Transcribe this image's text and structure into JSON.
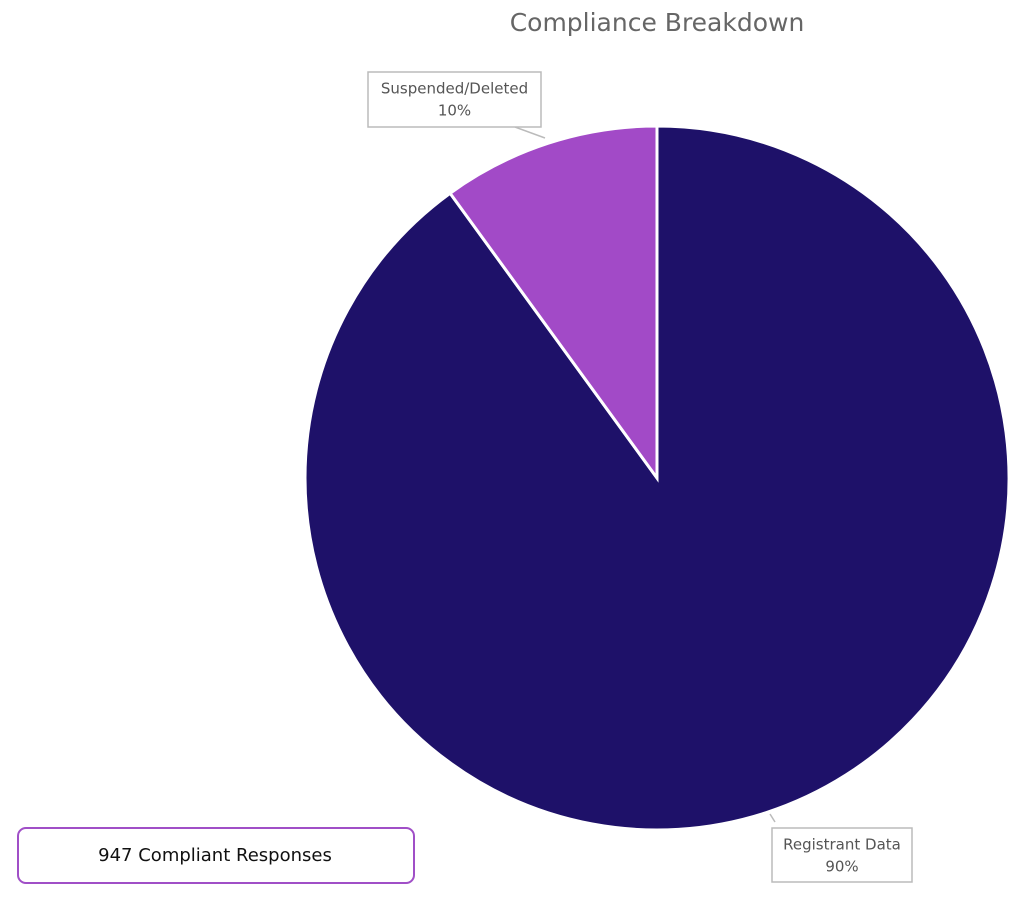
{
  "chart_data": {
    "type": "pie",
    "title": "Compliance Breakdown",
    "categories": [
      "Registrant Data",
      "Suspended/Deleted"
    ],
    "values": [
      90,
      10
    ],
    "value_labels": [
      "90%",
      "10%"
    ],
    "colors": [
      "#1e1169",
      "#a24ac7"
    ],
    "annotation": "947 Compliant Responses"
  }
}
